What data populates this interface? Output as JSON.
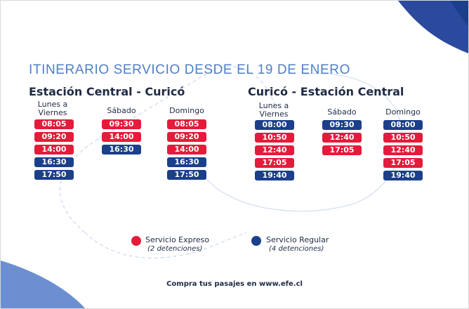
{
  "colors": {
    "expreso": "#e41b3a",
    "regular": "#1b3f8a",
    "title": "#4f7fc4",
    "text": "#1f2a44"
  },
  "title": "ITINERARIO SERVICIO DESDE EL 19 DE ENERO",
  "routes": [
    {
      "name": "Estación Central - Curicó",
      "columns": [
        {
          "header": [
            "Lunes a",
            "Viernes"
          ],
          "times": [
            {
              "time": "08:05",
              "service": "expreso"
            },
            {
              "time": "09:20",
              "service": "expreso"
            },
            {
              "time": "14:00",
              "service": "expreso"
            },
            {
              "time": "16:30",
              "service": "regular"
            },
            {
              "time": "17:50",
              "service": "regular"
            }
          ]
        },
        {
          "header": [
            "Sábado"
          ],
          "times": [
            {
              "time": "09:30",
              "service": "expreso"
            },
            {
              "time": "14:00",
              "service": "expreso"
            },
            {
              "time": "16:30",
              "service": "regular"
            }
          ]
        },
        {
          "header": [
            "Domingo"
          ],
          "times": [
            {
              "time": "08:05",
              "service": "expreso"
            },
            {
              "time": "09:20",
              "service": "expreso"
            },
            {
              "time": "14:00",
              "service": "expreso"
            },
            {
              "time": "16:30",
              "service": "regular"
            },
            {
              "time": "17:50",
              "service": "regular"
            }
          ]
        }
      ]
    },
    {
      "name": "Curicó - Estación Central",
      "columns": [
        {
          "header": [
            "Lunes a",
            "Viernes"
          ],
          "times": [
            {
              "time": "08:00",
              "service": "regular"
            },
            {
              "time": "10:50",
              "service": "expreso"
            },
            {
              "time": "12:40",
              "service": "expreso"
            },
            {
              "time": "17:05",
              "service": "expreso"
            },
            {
              "time": "19:40",
              "service": "regular"
            }
          ]
        },
        {
          "header": [
            "Sábado"
          ],
          "times": [
            {
              "time": "09:30",
              "service": "regular"
            },
            {
              "time": "12:40",
              "service": "expreso"
            },
            {
              "time": "17:05",
              "service": "expreso"
            }
          ]
        },
        {
          "header": [
            "Domingo"
          ],
          "times": [
            {
              "time": "08:00",
              "service": "regular"
            },
            {
              "time": "10:50",
              "service": "expreso"
            },
            {
              "time": "12:40",
              "service": "expreso"
            },
            {
              "time": "17:05",
              "service": "expreso"
            },
            {
              "time": "19:40",
              "service": "regular"
            }
          ]
        }
      ]
    }
  ],
  "legend": {
    "expreso": {
      "label": "Servicio Expreso",
      "sub": "(2 detenciones)"
    },
    "regular": {
      "label": "Servicio Regular",
      "sub": "(4 detenciones)"
    }
  },
  "footer": "Compra tus pasajes en www.efe.cl"
}
